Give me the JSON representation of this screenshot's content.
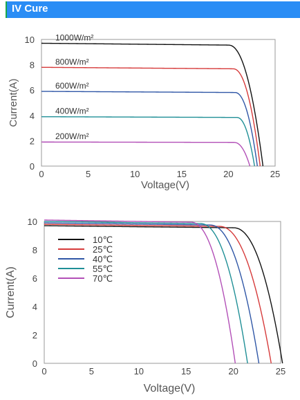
{
  "header": {
    "title": "IV Cure"
  },
  "chart_data": [
    {
      "type": "line",
      "title": "",
      "xlabel": "Voltage(V)",
      "ylabel": "Current(A)",
      "xlim": [
        0,
        25
      ],
      "ylim": [
        0,
        10
      ],
      "xticks": [
        "0",
        "5",
        "10",
        "15",
        "20",
        "25"
      ],
      "yticks": [
        "0",
        "2",
        "4",
        "6",
        "8",
        "10"
      ],
      "grid": false,
      "legend": "inline-labels",
      "series": [
        {
          "name": "1000W/m²",
          "color": "#111111",
          "isc": 9.7,
          "voc": 23.7,
          "knee": 20.0
        },
        {
          "name": "800W/m²",
          "color": "#d63a3a",
          "isc": 7.8,
          "voc": 23.4,
          "knee": 20.5
        },
        {
          "name": "600W/m²",
          "color": "#2f56a6",
          "isc": 5.9,
          "voc": 23.1,
          "knee": 20.7
        },
        {
          "name": "400W/m²",
          "color": "#1f8f96",
          "isc": 3.9,
          "voc": 22.8,
          "knee": 20.9
        },
        {
          "name": "200W/m²",
          "color": "#b24fb7",
          "isc": 1.9,
          "voc": 22.3,
          "knee": 20.6
        }
      ]
    },
    {
      "type": "line",
      "title": "",
      "xlabel": "Voltage(V)",
      "ylabel": "Current(A)",
      "xlim": [
        0,
        25
      ],
      "ylim": [
        0,
        10
      ],
      "xticks": [
        "0",
        "5",
        "10",
        "15",
        "20",
        "25"
      ],
      "yticks": [
        "0",
        "2",
        "4",
        "6",
        "8",
        "10"
      ],
      "grid": false,
      "legend": "top-left",
      "series": [
        {
          "name": "10℃",
          "color": "#111111",
          "isc": 9.7,
          "voc": 25.2,
          "knee": 20.0
        },
        {
          "name": "25℃",
          "color": "#d63a3a",
          "isc": 9.8,
          "voc": 24.0,
          "knee": 18.5
        },
        {
          "name": "40℃",
          "color": "#2f56a6",
          "isc": 9.9,
          "voc": 22.7,
          "knee": 17.5
        },
        {
          "name": "55℃",
          "color": "#1f8f96",
          "isc": 10.0,
          "voc": 21.5,
          "knee": 16.5
        },
        {
          "name": "70℃",
          "color": "#b24fb7",
          "isc": 10.1,
          "voc": 20.2,
          "knee": 15.5
        }
      ]
    }
  ]
}
